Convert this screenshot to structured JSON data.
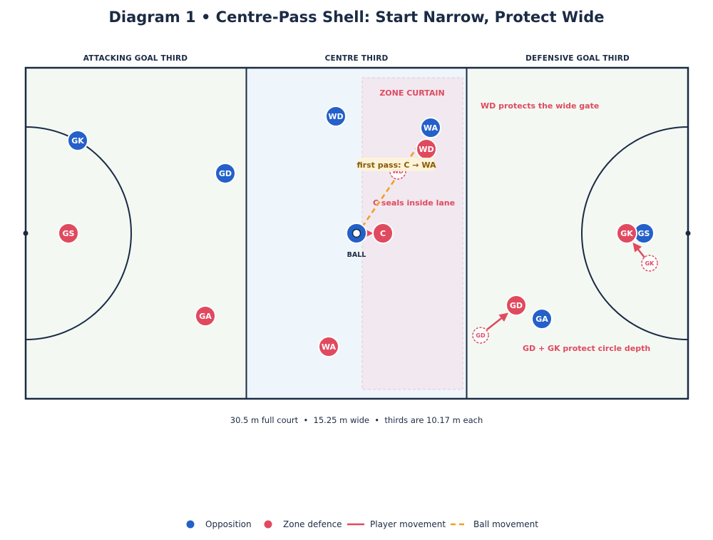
{
  "title": "Diagram 1 • Centre-Pass Shell: Start Narrow, Protect Wide",
  "thirds": {
    "attacking": "ATTACKING GOAL THIRD",
    "centre": "CENTRE THIRD",
    "defensive": "DEFENSIVE GOAL THIRD"
  },
  "zone_curtain": "ZONE CURTAIN",
  "notes": {
    "wd_protect": "WD protects the wide gate",
    "c_seals": "C seals inside lane",
    "gd_gk": "GD + GK protect circle depth"
  },
  "pass_label": "first pass: C → WA",
  "ball_label": "BALL",
  "footnote": "30.5 m full court  •  15.25 m wide  •  thirds are 10.17 m each",
  "colors": {
    "opposition": "#2460c9",
    "zone_defence": "#e04a5f",
    "ball_movement": "#f0a020",
    "court_line": "#1b2b44"
  },
  "players": {
    "opp_gk": "GK",
    "opp_gd": "GD",
    "opp_wd": "WD",
    "opp_wa": "WA",
    "opp_gs": "GS",
    "opp_ga": "GA",
    "def_gs": "GS",
    "def_ga": "GA",
    "def_wa": "WA",
    "def_c": "C",
    "def_wd": "WD",
    "def_gk": "GK",
    "def_gd": "GD"
  },
  "ghosts": {
    "wd": "WD",
    "gk": "GK",
    "gd": "GD"
  },
  "legend": {
    "opposition": "Opposition",
    "zone_defence": "Zone defence",
    "player_movement": "Player movement",
    "ball_movement": "Ball movement"
  }
}
